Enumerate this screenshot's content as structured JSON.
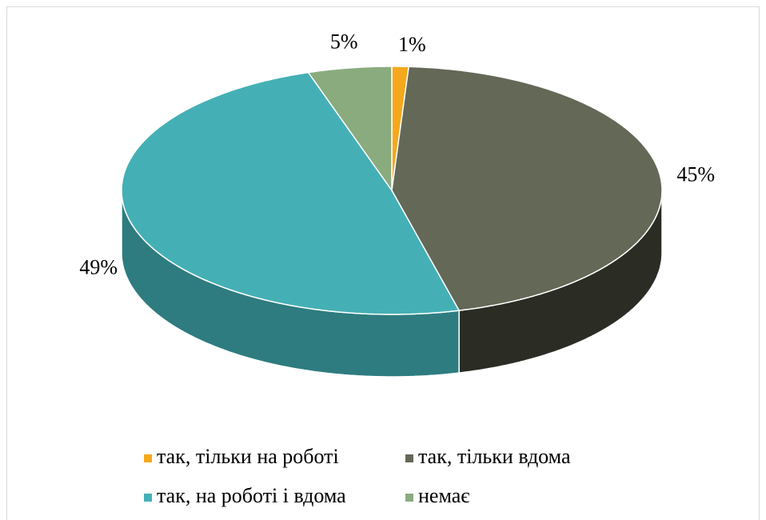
{
  "chart_data": {
    "type": "pie",
    "categories": [
      "так, тільки на роботі",
      "так, тільки вдома",
      "так, на роботі і вдома",
      "немає"
    ],
    "values": [
      1,
      45,
      49,
      5
    ],
    "value_labels": [
      "1%",
      "45%",
      "49%",
      "5%"
    ],
    "colors": [
      "#f5a81c",
      "#636857",
      "#44b0b5",
      "#8aab7e"
    ],
    "side_colors": [
      "#b57a10",
      "#2b2c24",
      "#2e7c80",
      "#5f7a55"
    ],
    "legend": "bottom"
  }
}
